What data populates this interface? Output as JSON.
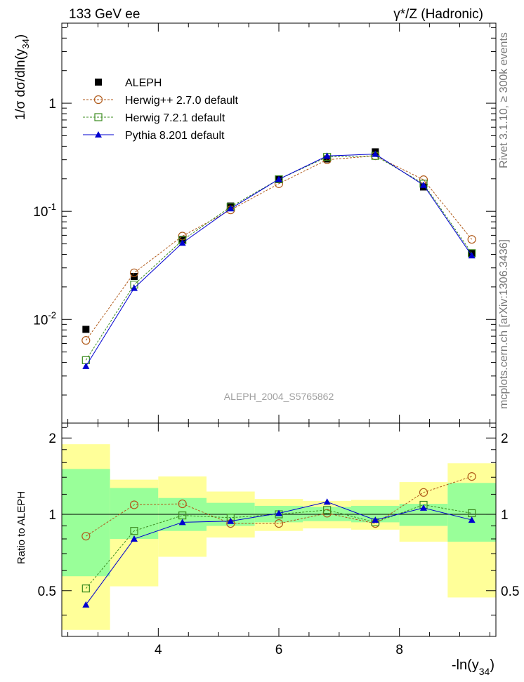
{
  "header": {
    "left": "133 GeV ee",
    "right": "γ*/Z (Hadronic)"
  },
  "side_labels": {
    "rivet": "Rivet 3.1.10, ≥ 300k events",
    "mcplots": "mcplots.cern.ch [arXiv:1306.3436]"
  },
  "watermark": "ALEPH_2004_S5765862",
  "chart_data": [
    {
      "type": "scatter",
      "panel": "main",
      "ylabel": "1/σ dσ/dln(y34)",
      "yscale": "log",
      "xlim": [
        2.4,
        9.6
      ],
      "ylim": [
        0.0011,
        5.5
      ],
      "y_ticks": [
        {
          "value": 1,
          "label": "1"
        },
        {
          "value": 0.1,
          "label": "10^-1"
        },
        {
          "value": 0.01,
          "label": "10^-2"
        }
      ],
      "legend_position": "top-left",
      "x": [
        2.8,
        3.6,
        4.4,
        5.2,
        6.0,
        6.8,
        7.6,
        8.4,
        9.2
      ],
      "series": [
        {
          "name": "ALEPH",
          "marker": "filled-square",
          "color": "#000000",
          "values": [
            0.0081,
            0.025,
            0.055,
            0.112,
            0.197,
            0.305,
            0.355,
            0.168,
            0.041
          ]
        },
        {
          "name": "Herwig++ 2.7.0 default",
          "marker": "open-circle",
          "line": "dashed",
          "color": "#b05a1a",
          "values": [
            0.0064,
            0.027,
            0.059,
            0.103,
            0.18,
            0.3,
            0.326,
            0.196,
            0.055
          ]
        },
        {
          "name": "Herwig 7.2.1 default",
          "marker": "open-square",
          "line": "dashed",
          "color": "#3c8c20",
          "values": [
            0.0042,
            0.021,
            0.054,
            0.11,
            0.198,
            0.318,
            0.326,
            0.18,
            0.041
          ]
        },
        {
          "name": "Pythia 8.201 default",
          "marker": "filled-triangle",
          "line": "solid",
          "color": "#0000d0",
          "values": [
            0.0037,
            0.0195,
            0.051,
            0.106,
            0.198,
            0.325,
            0.338,
            0.175,
            0.039
          ]
        }
      ]
    },
    {
      "type": "scatter",
      "panel": "ratio",
      "ylabel": "Ratio to ALEPH",
      "xlabel": "-ln(y34)",
      "xlim": [
        2.4,
        9.6
      ],
      "ylim": [
        0.33,
        2.29
      ],
      "x_ticks": [
        4,
        6,
        8
      ],
      "y_ticks": [
        0.5,
        1,
        2
      ],
      "bin_edges": [
        2.4,
        3.2,
        4.0,
        4.8,
        5.6,
        6.4,
        7.2,
        8.0,
        8.8,
        9.6
      ],
      "band_stat": {
        "low": [
          0.57,
          0.8,
          0.86,
          0.9,
          0.93,
          0.94,
          0.93,
          0.9,
          0.78
        ],
        "high": [
          1.51,
          1.27,
          1.16,
          1.11,
          1.08,
          1.07,
          1.08,
          1.1,
          1.33
        ]
      },
      "band_total": {
        "low": [
          0.35,
          0.52,
          0.68,
          0.81,
          0.86,
          0.88,
          0.87,
          0.78,
          0.47
        ],
        "high": [
          1.89,
          1.37,
          1.41,
          1.23,
          1.15,
          1.13,
          1.14,
          1.34,
          1.59
        ]
      },
      "series": [
        {
          "name": "Herwig++ 2.7.0 default",
          "color": "#b05a1a",
          "values": [
            0.82,
            1.09,
            1.1,
            0.92,
            0.92,
            1.01,
            0.92,
            1.22,
            1.41
          ]
        },
        {
          "name": "Herwig 7.2.1 default",
          "color": "#3c8c20",
          "values": [
            0.51,
            0.86,
            0.99,
            0.97,
            1.0,
            1.04,
            0.93,
            1.09,
            1.01
          ]
        },
        {
          "name": "Pythia 8.201 default",
          "color": "#0000d0",
          "values": [
            0.44,
            0.8,
            0.93,
            0.94,
            1.01,
            1.12,
            0.95,
            1.06,
            0.95
          ]
        }
      ]
    }
  ]
}
